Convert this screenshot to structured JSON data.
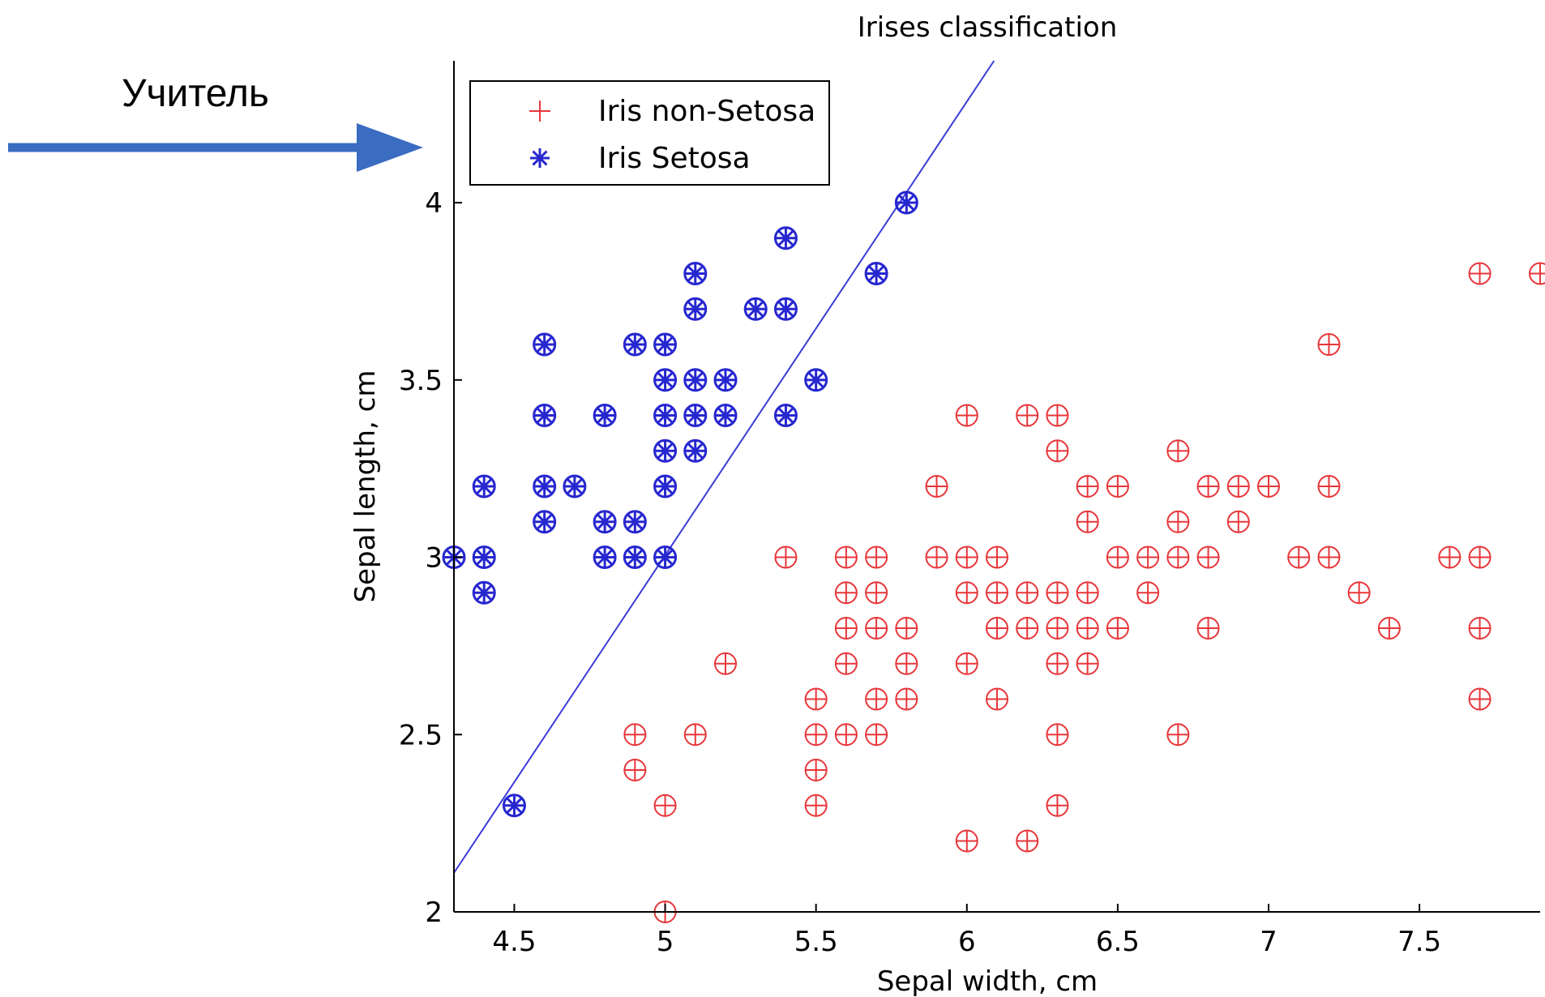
{
  "annotation": {
    "label": "Учитель",
    "arrow_color": "#3a6cc1"
  },
  "chart_data": {
    "type": "scatter",
    "title": "Irises classification",
    "xlabel": "Sepal width, cm",
    "ylabel": "Sepal length, cm",
    "xlim": [
      4.3,
      7.9
    ],
    "ylim": [
      2.0,
      4.4
    ],
    "xticks": [
      4.5,
      5,
      5.5,
      6,
      6.5,
      7,
      7.5
    ],
    "yticks": [
      2,
      2.5,
      3,
      3.5,
      4
    ],
    "legend_position": "top-left",
    "decision_boundary": {
      "color": "#3b3bd6",
      "p1": [
        4.3,
        2.11
      ],
      "p2": [
        6.09,
        4.4
      ]
    },
    "series": [
      {
        "name": "Iris non-Setosa",
        "marker": "+",
        "color": "#e8363a",
        "points": [
          [
            5.0,
            2.0
          ],
          [
            4.9,
            2.4
          ],
          [
            4.9,
            2.5
          ],
          [
            5.0,
            2.3
          ],
          [
            5.1,
            2.5
          ],
          [
            5.2,
            2.7
          ],
          [
            5.4,
            3.0
          ],
          [
            5.5,
            2.3
          ],
          [
            5.5,
            2.4
          ],
          [
            5.5,
            2.5
          ],
          [
            5.5,
            2.6
          ],
          [
            5.6,
            2.5
          ],
          [
            5.6,
            2.7
          ],
          [
            5.6,
            2.8
          ],
          [
            5.6,
            2.9
          ],
          [
            5.6,
            3.0
          ],
          [
            5.7,
            2.5
          ],
          [
            5.7,
            2.6
          ],
          [
            5.7,
            2.8
          ],
          [
            5.7,
            2.9
          ],
          [
            5.7,
            3.0
          ],
          [
            5.8,
            2.6
          ],
          [
            5.8,
            2.7
          ],
          [
            5.8,
            2.8
          ],
          [
            5.9,
            3.0
          ],
          [
            5.9,
            3.2
          ],
          [
            6.0,
            2.2
          ],
          [
            6.0,
            2.7
          ],
          [
            6.0,
            2.9
          ],
          [
            6.0,
            3.0
          ],
          [
            6.0,
            3.4
          ],
          [
            6.1,
            2.6
          ],
          [
            6.1,
            2.8
          ],
          [
            6.1,
            2.9
          ],
          [
            6.1,
            3.0
          ],
          [
            6.2,
            2.2
          ],
          [
            6.2,
            2.8
          ],
          [
            6.2,
            2.9
          ],
          [
            6.2,
            3.4
          ],
          [
            6.3,
            2.3
          ],
          [
            6.3,
            2.5
          ],
          [
            6.3,
            2.7
          ],
          [
            6.3,
            2.8
          ],
          [
            6.3,
            2.9
          ],
          [
            6.3,
            3.3
          ],
          [
            6.3,
            3.4
          ],
          [
            6.4,
            2.7
          ],
          [
            6.4,
            2.8
          ],
          [
            6.4,
            2.9
          ],
          [
            6.4,
            3.1
          ],
          [
            6.4,
            3.2
          ],
          [
            6.5,
            2.8
          ],
          [
            6.5,
            3.0
          ],
          [
            6.5,
            3.2
          ],
          [
            6.6,
            2.9
          ],
          [
            6.6,
            3.0
          ],
          [
            6.7,
            2.5
          ],
          [
            6.7,
            3.0
          ],
          [
            6.7,
            3.1
          ],
          [
            6.7,
            3.3
          ],
          [
            6.8,
            2.8
          ],
          [
            6.8,
            3.0
          ],
          [
            6.8,
            3.2
          ],
          [
            6.9,
            3.1
          ],
          [
            6.9,
            3.2
          ],
          [
            7.0,
            3.2
          ],
          [
            7.1,
            3.0
          ],
          [
            7.2,
            3.0
          ],
          [
            7.2,
            3.2
          ],
          [
            7.2,
            3.6
          ],
          [
            7.3,
            2.9
          ],
          [
            7.4,
            2.8
          ],
          [
            7.6,
            3.0
          ],
          [
            7.7,
            2.6
          ],
          [
            7.7,
            2.8
          ],
          [
            7.7,
            3.0
          ],
          [
            7.7,
            3.8
          ],
          [
            7.9,
            3.8
          ]
        ]
      },
      {
        "name": "Iris Setosa",
        "marker": "*",
        "color": "#2727d0",
        "points": [
          [
            4.3,
            3.0
          ],
          [
            4.4,
            2.9
          ],
          [
            4.4,
            3.0
          ],
          [
            4.4,
            3.2
          ],
          [
            4.5,
            2.3
          ],
          [
            4.6,
            3.1
          ],
          [
            4.6,
            3.2
          ],
          [
            4.6,
            3.4
          ],
          [
            4.6,
            3.6
          ],
          [
            4.7,
            3.2
          ],
          [
            4.8,
            3.0
          ],
          [
            4.8,
            3.1
          ],
          [
            4.8,
            3.4
          ],
          [
            4.9,
            3.0
          ],
          [
            4.9,
            3.1
          ],
          [
            4.9,
            3.6
          ],
          [
            5.0,
            3.0
          ],
          [
            5.0,
            3.2
          ],
          [
            5.0,
            3.3
          ],
          [
            5.0,
            3.4
          ],
          [
            5.0,
            3.5
          ],
          [
            5.0,
            3.6
          ],
          [
            5.1,
            3.3
          ],
          [
            5.1,
            3.4
          ],
          [
            5.1,
            3.5
          ],
          [
            5.1,
            3.7
          ],
          [
            5.1,
            3.8
          ],
          [
            5.2,
            3.4
          ],
          [
            5.2,
            3.5
          ],
          [
            5.3,
            3.7
          ],
          [
            5.4,
            3.4
          ],
          [
            5.4,
            3.7
          ],
          [
            5.4,
            3.9
          ],
          [
            5.5,
            3.5
          ],
          [
            5.7,
            3.8
          ],
          [
            5.8,
            4.0
          ]
        ]
      }
    ]
  }
}
